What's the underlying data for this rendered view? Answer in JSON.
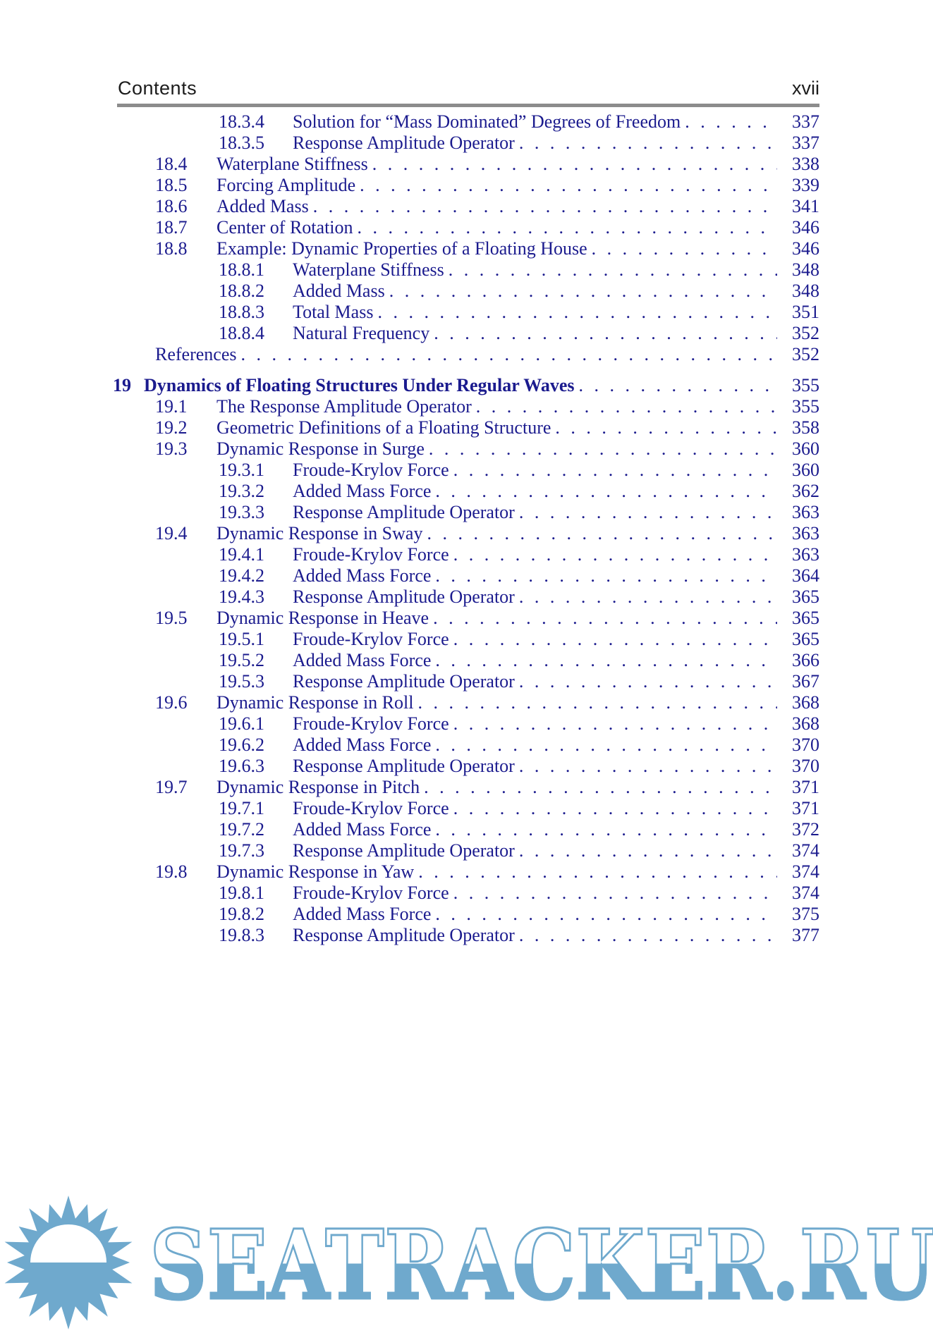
{
  "header": {
    "left": "Contents",
    "right": "xvii"
  },
  "toc": {
    "entries": [
      {
        "level": "sub",
        "num": "18.3.4",
        "title": "Solution for “Mass Dominated” Degrees of Freedom",
        "page": "337"
      },
      {
        "level": "sub",
        "num": "18.3.5",
        "title": "Response Amplitude Operator",
        "page": "337"
      },
      {
        "level": "section",
        "num": "18.4",
        "title": "Waterplane Stiffness",
        "page": "338"
      },
      {
        "level": "section",
        "num": "18.5",
        "title": "Forcing Amplitude",
        "page": "339"
      },
      {
        "level": "section",
        "num": "18.6",
        "title": "Added Mass",
        "page": "341"
      },
      {
        "level": "section",
        "num": "18.7",
        "title": "Center of Rotation",
        "page": "346"
      },
      {
        "level": "section",
        "num": "18.8",
        "title": "Example: Dynamic Properties of a Floating House",
        "page": "346"
      },
      {
        "level": "sub",
        "num": "18.8.1",
        "title": "Waterplane Stiffness",
        "page": "348"
      },
      {
        "level": "sub",
        "num": "18.8.2",
        "title": "Added Mass",
        "page": "348"
      },
      {
        "level": "sub",
        "num": "18.8.3",
        "title": "Total Mass",
        "page": "351"
      },
      {
        "level": "sub",
        "num": "18.8.4",
        "title": "Natural Frequency",
        "page": "352"
      },
      {
        "level": "refs",
        "num": "",
        "title": "References",
        "page": "352"
      },
      {
        "level": "chapter",
        "num": "19",
        "title": "Dynamics of Floating Structures Under Regular Waves",
        "page": "355"
      },
      {
        "level": "section",
        "num": "19.1",
        "title": "The Response Amplitude Operator",
        "page": "355"
      },
      {
        "level": "section",
        "num": "19.2",
        "title": "Geometric Definitions of a Floating Structure",
        "page": "358"
      },
      {
        "level": "section",
        "num": "19.3",
        "title": "Dynamic Response in Surge",
        "page": "360"
      },
      {
        "level": "sub",
        "num": "19.3.1",
        "title": "Froude-Krylov Force",
        "page": "360"
      },
      {
        "level": "sub",
        "num": "19.3.2",
        "title": "Added Mass Force",
        "page": "362"
      },
      {
        "level": "sub",
        "num": "19.3.3",
        "title": "Response Amplitude Operator",
        "page": "363"
      },
      {
        "level": "section",
        "num": "19.4",
        "title": "Dynamic Response in Sway",
        "page": "363"
      },
      {
        "level": "sub",
        "num": "19.4.1",
        "title": "Froude-Krylov Force",
        "page": "363"
      },
      {
        "level": "sub",
        "num": "19.4.2",
        "title": "Added Mass Force",
        "page": "364"
      },
      {
        "level": "sub",
        "num": "19.4.3",
        "title": "Response Amplitude Operator",
        "page": "365"
      },
      {
        "level": "section",
        "num": "19.5",
        "title": "Dynamic Response in Heave",
        "page": "365"
      },
      {
        "level": "sub",
        "num": "19.5.1",
        "title": "Froude-Krylov Force",
        "page": "365"
      },
      {
        "level": "sub",
        "num": "19.5.2",
        "title": "Added Mass Force",
        "page": "366"
      },
      {
        "level": "sub",
        "num": "19.5.3",
        "title": "Response Amplitude Operator",
        "page": "367"
      },
      {
        "level": "section",
        "num": "19.6",
        "title": "Dynamic Response in Roll",
        "page": "368"
      },
      {
        "level": "sub",
        "num": "19.6.1",
        "title": "Froude-Krylov Force",
        "page": "368"
      },
      {
        "level": "sub",
        "num": "19.6.2",
        "title": "Added Mass Force",
        "page": "370"
      },
      {
        "level": "sub",
        "num": "19.6.3",
        "title": "Response Amplitude Operator",
        "page": "370"
      },
      {
        "level": "section",
        "num": "19.7",
        "title": "Dynamic Response in Pitch",
        "page": "371"
      },
      {
        "level": "sub",
        "num": "19.7.1",
        "title": "Froude-Krylov Force",
        "page": "371"
      },
      {
        "level": "sub",
        "num": "19.7.2",
        "title": "Added Mass Force",
        "page": "372"
      },
      {
        "level": "sub",
        "num": "19.7.3",
        "title": "Response Amplitude Operator",
        "page": "374"
      },
      {
        "level": "section",
        "num": "19.8",
        "title": "Dynamic Response in Yaw",
        "page": "374"
      },
      {
        "level": "sub",
        "num": "19.8.1",
        "title": "Froude-Krylov Force",
        "page": "374"
      },
      {
        "level": "sub",
        "num": "19.8.2",
        "title": "Added Mass Force",
        "page": "375"
      },
      {
        "level": "sub",
        "num": "19.8.3",
        "title": "Response Amplitude Operator",
        "page": "377"
      }
    ]
  },
  "watermark": {
    "text": "SEATRACKER.RU",
    "sun_icon": "sun-logo-icon"
  },
  "colors": {
    "toc_text": "#1b1b8e",
    "header_text": "#1c1c1c",
    "rule_gray": "#8c8c8c",
    "watermark_blue": "#6fa9cd"
  }
}
